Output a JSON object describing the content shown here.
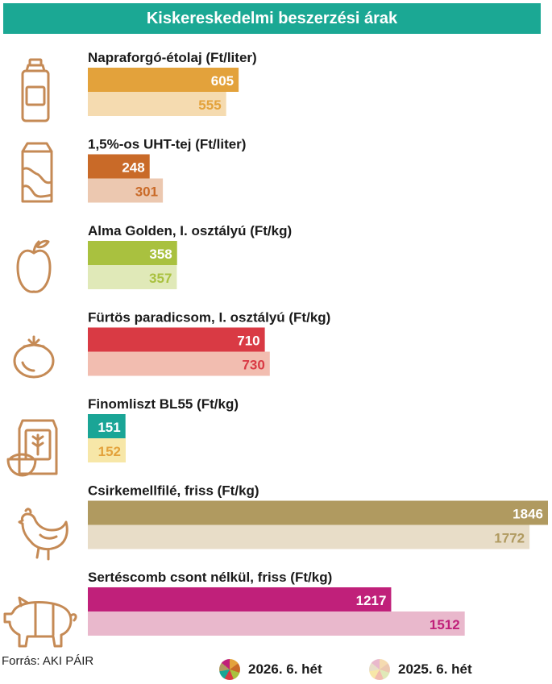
{
  "title": "Kiskereskedelmi beszerzési árak",
  "source": "Forrás: AKI PÁIR",
  "legend": {
    "current": "2026. 6. hét",
    "previous": "2025. 6. hét"
  },
  "chart_data": {
    "type": "bar",
    "orientation": "horizontal",
    "title": "Kiskereskedelmi beszerzési árak",
    "categories": [
      "Napraforgó-étolaj (Ft/liter)",
      "1,5%-os UHT-tej (Ft/liter)",
      "Alma Golden, I. osztályú (Ft/kg)",
      "Fürtös paradicsom, I. osztályú (Ft/kg)",
      "Finomliszt BL55 (Ft/kg)",
      "Csirkemellfilé, friss (Ft/kg)",
      "Sertéscomb csont nélkül, friss (Ft/kg)"
    ],
    "series": [
      {
        "name": "2026. 6. hét",
        "values": [
          605,
          248,
          358,
          710,
          151,
          1846,
          1217
        ]
      },
      {
        "name": "2025. 6. hét",
        "values": [
          555,
          301,
          357,
          730,
          152,
          1772,
          1512
        ]
      }
    ],
    "icons": [
      "oil-bottle-icon",
      "milk-carton-icon",
      "apple-icon",
      "tomato-icon",
      "flour-sack-icon",
      "chicken-icon",
      "pig-icon"
    ],
    "colors": {
      "current": [
        "#e3a23b",
        "#c96a28",
        "#a9c13f",
        "#d93a44",
        "#1aa596",
        "#b09a60",
        "#c0207a"
      ],
      "previous": [
        "#f5dbb0",
        "#ecc8b0",
        "#e0e9b8",
        "#f2bdb0",
        "#f7e7a8",
        "#e8ddc8",
        "#e9b8cc"
      ],
      "previous_text": [
        "#e3a23b",
        "#c96a28",
        "#a9c13f",
        "#d93a44",
        "#e3a23b",
        "#b09a60",
        "#c0207a"
      ],
      "icon": "#c58a55"
    },
    "xlim": [
      0,
      1846
    ]
  }
}
